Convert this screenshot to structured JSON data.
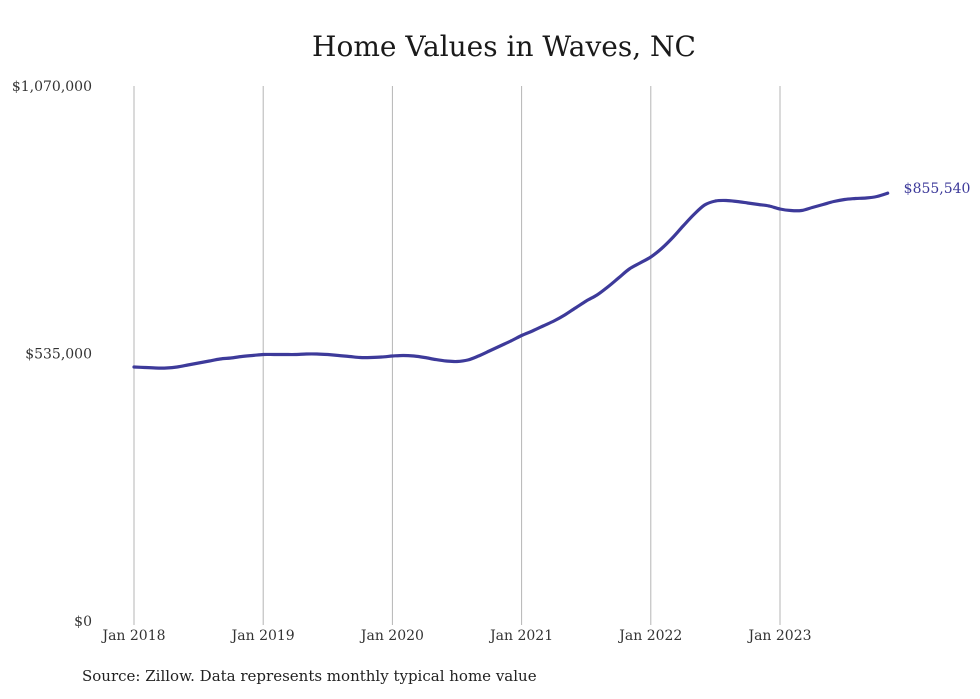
{
  "chart_data": {
    "type": "line",
    "title": "Home Values in Waves, NC",
    "xlabel": "",
    "ylabel": "",
    "ylim": [
      0,
      1070000
    ],
    "y_ticks": [
      {
        "value": 0,
        "label": "$0"
      },
      {
        "value": 535000,
        "label": "$535,000"
      },
      {
        "value": 1070000,
        "label": "$1,070,000"
      }
    ],
    "x_ticks": [
      {
        "value": 0,
        "label": "Jan 2018"
      },
      {
        "value": 12,
        "label": "Jan 2019"
      },
      {
        "value": 24,
        "label": "Jan 2020"
      },
      {
        "value": 36,
        "label": "Jan 2021"
      },
      {
        "value": 48,
        "label": "Jan 2022"
      },
      {
        "value": 60,
        "label": "Jan 2023"
      }
    ],
    "grid": "vertical",
    "line_color": "#3d3a9a",
    "end_label": "$855,540",
    "series": [
      {
        "values": [
          [
            0,
            508000
          ],
          [
            1,
            507000
          ],
          [
            2,
            506000
          ],
          [
            3,
            506000
          ],
          [
            4,
            508000
          ],
          [
            5,
            512000
          ],
          [
            6,
            516000
          ],
          [
            7,
            520000
          ],
          [
            8,
            524000
          ],
          [
            9,
            526000
          ],
          [
            10,
            529000
          ],
          [
            11,
            531000
          ],
          [
            12,
            533000
          ],
          [
            13,
            533000
          ],
          [
            14,
            533000
          ],
          [
            15,
            533000
          ],
          [
            16,
            534000
          ],
          [
            17,
            534000
          ],
          [
            18,
            533000
          ],
          [
            19,
            531000
          ],
          [
            20,
            529000
          ],
          [
            21,
            527000
          ],
          [
            22,
            527000
          ],
          [
            23,
            528000
          ],
          [
            24,
            530000
          ],
          [
            25,
            531000
          ],
          [
            26,
            530000
          ],
          [
            27,
            527000
          ],
          [
            28,
            523000
          ],
          [
            29,
            520000
          ],
          [
            30,
            519000
          ],
          [
            31,
            522000
          ],
          [
            32,
            530000
          ],
          [
            33,
            540000
          ],
          [
            34,
            550000
          ],
          [
            35,
            560000
          ],
          [
            36,
            571000
          ],
          [
            37,
            580000
          ],
          [
            38,
            590000
          ],
          [
            39,
            600000
          ],
          [
            40,
            612000
          ],
          [
            41,
            626000
          ],
          [
            42,
            640000
          ],
          [
            43,
            652000
          ],
          [
            44,
            668000
          ],
          [
            45,
            686000
          ],
          [
            46,
            704000
          ],
          [
            47,
            716000
          ],
          [
            48,
            728000
          ],
          [
            49,
            745000
          ],
          [
            50,
            766000
          ],
          [
            51,
            790000
          ],
          [
            52,
            813000
          ],
          [
            53,
            832000
          ],
          [
            54,
            840000
          ],
          [
            55,
            841000
          ],
          [
            56,
            839000
          ],
          [
            57,
            836000
          ],
          [
            58,
            833000
          ],
          [
            59,
            830000
          ],
          [
            60,
            824000
          ],
          [
            61,
            821000
          ],
          [
            62,
            821000
          ],
          [
            63,
            827000
          ],
          [
            64,
            833000
          ],
          [
            65,
            839000
          ],
          [
            66,
            843000
          ],
          [
            67,
            845000
          ],
          [
            68,
            846000
          ],
          [
            69,
            849000
          ],
          [
            70,
            855540
          ]
        ]
      }
    ]
  },
  "footer": {
    "source": "Source: Zillow. Data represents monthly typical home value"
  }
}
